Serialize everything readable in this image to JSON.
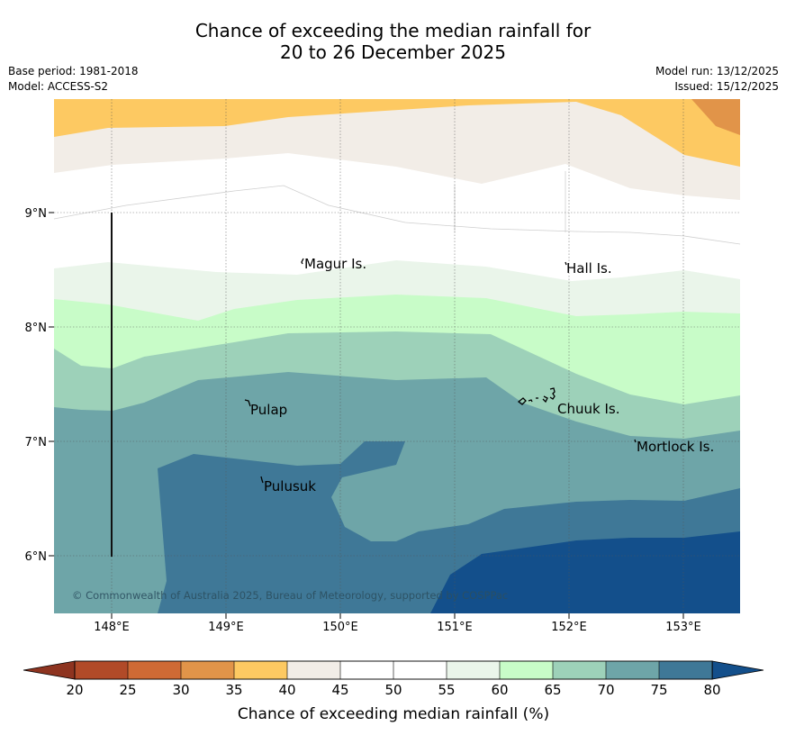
{
  "title": {
    "line1": "Chance of exceeding the median rainfall for",
    "line2": "20 to 26 December 2025"
  },
  "meta": {
    "base_period": "Base period: 1981-2018",
    "model": "Model: ACCESS-S2",
    "model_run": "Model run: 13/12/2025",
    "issued": "Issued: 15/12/2025"
  },
  "map": {
    "lat_labels": [
      "9°N",
      "8°N",
      "7°N",
      "6°N"
    ],
    "lon_labels": [
      "148°E",
      "149°E",
      "150°E",
      "151°E",
      "152°E",
      "153°E"
    ],
    "places": [
      "Magur Is.",
      "Hall Is.",
      "Pulap",
      "Chuuk Is.",
      "Mortlock Is.",
      "Pulusuk"
    ],
    "copyright": "© Commonwealth of Australia 2025, Bureau of Meteorology, supported by COSPPac"
  },
  "colorbar": {
    "title": "Chance of exceeding median rainfall (%)",
    "ticks": [
      "20",
      "25",
      "30",
      "35",
      "40",
      "45",
      "50",
      "55",
      "60",
      "65",
      "70",
      "75",
      "80"
    ],
    "colors": [
      "#b14a28",
      "#cf6a35",
      "#e19449",
      "#fdc962",
      "#f2ede7",
      "#ffffff",
      "#ffffff",
      "#eaf5ea",
      "#c8fcc8",
      "#9dd1b9",
      "#6ea5a8",
      "#3f7897"
    ],
    "under_color": "#8e3420",
    "over_color": "#134f8b"
  }
}
